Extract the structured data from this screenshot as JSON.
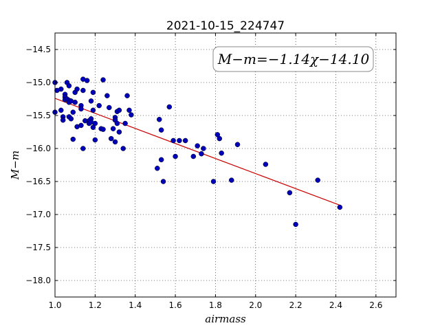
{
  "chart_data": {
    "type": "scatter",
    "title": "2021-10-15_224747",
    "xlabel": "airmass",
    "ylabel": "M−m",
    "xlim": [
      1.0,
      2.7
    ],
    "ylim": [
      -18.25,
      -14.25
    ],
    "y_inverted": true,
    "grid": true,
    "x_ticks": [
      "1.0",
      "1.2",
      "1.4",
      "1.6",
      "1.8",
      "2.0",
      "2.2",
      "2.4",
      "2.6"
    ],
    "y_ticks": [
      "−14.5",
      "−15.0",
      "−15.5",
      "−16.0",
      "−16.5",
      "−17.0",
      "−17.5",
      "−18.0"
    ],
    "fit_label": "M−m=−1.14χ−14.10",
    "fit_label_placement": "top-right",
    "fit_line": {
      "slope": -1.14,
      "intercept": -14.1,
      "x_range": [
        1.0,
        2.42
      ],
      "color": "#cc0000"
    },
    "point_color": "#0000bb",
    "series": [
      {
        "points": [
          [
            1.0,
            -15.0
          ],
          [
            1.0,
            -15.45
          ],
          [
            1.01,
            -15.12
          ],
          [
            1.03,
            -15.1
          ],
          [
            1.03,
            -15.42
          ],
          [
            1.04,
            -15.52
          ],
          [
            1.04,
            -15.57
          ],
          [
            1.05,
            -15.18
          ],
          [
            1.05,
            -15.22
          ],
          [
            1.05,
            -15.26
          ],
          [
            1.06,
            -15.0
          ],
          [
            1.06,
            -15.25
          ],
          [
            1.07,
            -15.05
          ],
          [
            1.07,
            -15.27
          ],
          [
            1.07,
            -15.3
          ],
          [
            1.07,
            -15.52
          ],
          [
            1.08,
            -15.28
          ],
          [
            1.08,
            -15.55
          ],
          [
            1.09,
            -15.45
          ],
          [
            1.09,
            -15.86
          ],
          [
            1.1,
            -15.3
          ],
          [
            1.1,
            -15.15
          ],
          [
            1.11,
            -15.1
          ],
          [
            1.11,
            -15.67
          ],
          [
            1.13,
            -15.35
          ],
          [
            1.13,
            -15.4
          ],
          [
            1.13,
            -15.65
          ],
          [
            1.14,
            -14.95
          ],
          [
            1.14,
            -15.12
          ],
          [
            1.14,
            -16.0
          ],
          [
            1.15,
            -15.58
          ],
          [
            1.16,
            -14.97
          ],
          [
            1.17,
            -15.58
          ],
          [
            1.17,
            -15.62
          ],
          [
            1.18,
            -15.28
          ],
          [
            1.18,
            -15.55
          ],
          [
            1.18,
            -15.6
          ],
          [
            1.19,
            -15.15
          ],
          [
            1.19,
            -15.42
          ],
          [
            1.19,
            -15.68
          ],
          [
            1.2,
            -15.62
          ],
          [
            1.2,
            -15.87
          ],
          [
            1.22,
            -15.35
          ],
          [
            1.23,
            -15.7
          ],
          [
            1.24,
            -14.96
          ],
          [
            1.24,
            -15.71
          ],
          [
            1.26,
            -15.2
          ],
          [
            1.27,
            -15.38
          ],
          [
            1.28,
            -15.85
          ],
          [
            1.29,
            -15.7
          ],
          [
            1.3,
            -15.53
          ],
          [
            1.3,
            -15.57
          ],
          [
            1.3,
            -15.9
          ],
          [
            1.31,
            -15.62
          ],
          [
            1.31,
            -15.44
          ],
          [
            1.32,
            -15.42
          ],
          [
            1.32,
            -15.75
          ],
          [
            1.34,
            -16.0
          ],
          [
            1.35,
            -15.62
          ],
          [
            1.36,
            -15.2
          ],
          [
            1.37,
            -15.42
          ],
          [
            1.38,
            -15.49
          ],
          [
            1.51,
            -16.3
          ],
          [
            1.52,
            -15.56
          ],
          [
            1.53,
            -16.17
          ],
          [
            1.53,
            -15.72
          ],
          [
            1.54,
            -16.5
          ],
          [
            1.57,
            -15.37
          ],
          [
            1.59,
            -15.88
          ],
          [
            1.6,
            -16.12
          ],
          [
            1.62,
            -15.88
          ],
          [
            1.65,
            -15.88
          ],
          [
            1.69,
            -16.12
          ],
          [
            1.71,
            -15.96
          ],
          [
            1.73,
            -16.08
          ],
          [
            1.74,
            -16.0
          ],
          [
            1.79,
            -16.5
          ],
          [
            1.81,
            -15.79
          ],
          [
            1.82,
            -15.85
          ],
          [
            1.83,
            -16.07
          ],
          [
            1.88,
            -16.48
          ],
          [
            1.91,
            -15.94
          ],
          [
            2.05,
            -16.24
          ],
          [
            2.17,
            -16.67
          ],
          [
            2.2,
            -17.15
          ],
          [
            2.31,
            -16.48
          ],
          [
            2.42,
            -16.89
          ]
        ]
      }
    ]
  }
}
